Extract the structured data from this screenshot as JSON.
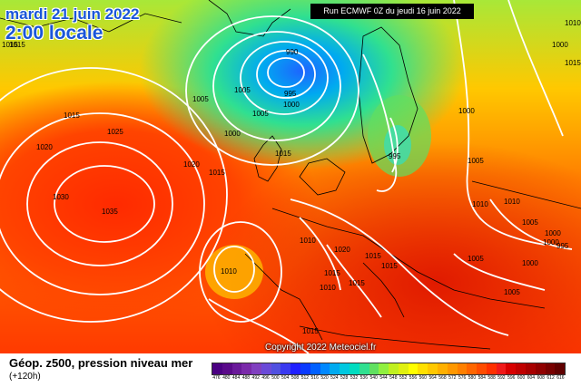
{
  "header": {
    "date": "mardi 21 juin 2022",
    "time": "2:00 locale",
    "run": "Run ECMWF 0Z du jeudi 16 juin 2022"
  },
  "copyright": "Copyright 2022 Meteociel.fr",
  "legend": {
    "title": "Géop. z500, pression niveau mer",
    "subtitle": "(+120h)",
    "ticks": [
      "476",
      "480",
      "484",
      "488",
      "492",
      "496",
      "500",
      "504",
      "508",
      "512",
      "516",
      "520",
      "524",
      "528",
      "532",
      "536",
      "540",
      "544",
      "548",
      "552",
      "556",
      "560",
      "564",
      "568",
      "572",
      "576",
      "580",
      "584",
      "588",
      "592",
      "596",
      "600",
      "604",
      "608",
      "612",
      "616"
    ],
    "colors": [
      "#4b0082",
      "#5a0a8a",
      "#6a1a9a",
      "#7a2aaa",
      "#8040c0",
      "#6a4ad8",
      "#5050e0",
      "#3a3af0",
      "#2020ff",
      "#0a3aff",
      "#0060ff",
      "#0088ff",
      "#00aaf0",
      "#00c8e0",
      "#00dcc0",
      "#30e090",
      "#60e060",
      "#90f040",
      "#c0f020",
      "#e0f010",
      "#ffff00",
      "#ffe000",
      "#ffc800",
      "#ffb000",
      "#ff9800",
      "#ff8000",
      "#ff6600",
      "#ff4c00",
      "#ff3000",
      "#f01a1a",
      "#d80000",
      "#c00000",
      "#a80000",
      "#900000",
      "#780000",
      "#600000"
    ]
  },
  "isobars": {
    "labels": [
      "1015",
      "1015",
      "1005",
      "1005",
      "1005",
      "990",
      "995",
      "1000",
      "1000",
      "1010",
      "1015",
      "1020",
      "1025",
      "1020",
      "1015",
      "1030",
      "1035",
      "1010",
      "1000",
      "995",
      "1000",
      "1005",
      "1010",
      "1010",
      "1005",
      "1000",
      "995",
      "1005",
      "1010",
      "1020",
      "1015",
      "1015",
      "1015",
      "1015",
      "1010",
      "1005",
      "1000",
      "1015",
      "1015",
      "1010",
      "1015",
      "1000"
    ]
  }
}
